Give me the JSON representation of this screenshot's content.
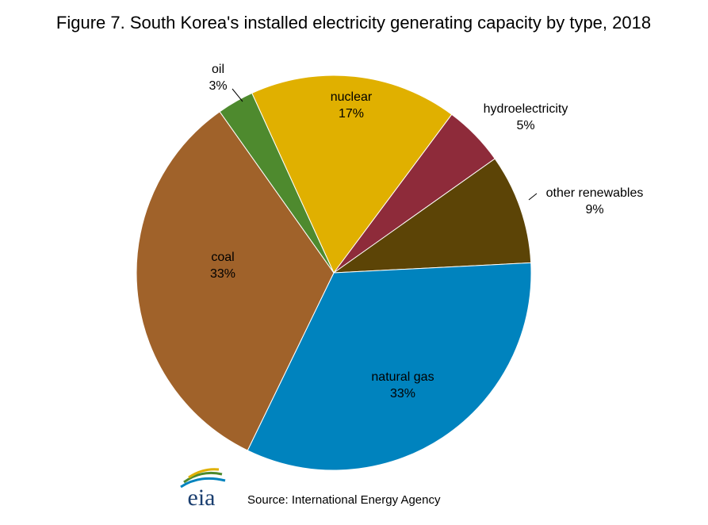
{
  "chart_data": {
    "type": "pie",
    "title": "Figure 7. South Korea's installed electricity generating capacity by type, 2018",
    "categories": [
      "nuclear",
      "hydroelectricity",
      "other renewables",
      "natural gas",
      "coal",
      "oil"
    ],
    "values": [
      17,
      5,
      9,
      33,
      33,
      3
    ],
    "value_labels": [
      "17%",
      "5%",
      "9%",
      "33%",
      "33%",
      "3%"
    ],
    "colors": [
      "#e0b000",
      "#8e2b3a",
      "#5c4406",
      "#0083be",
      "#a0622a",
      "#4e8a2e"
    ],
    "source": "Source: International Energy Agency",
    "logo": "eia"
  }
}
